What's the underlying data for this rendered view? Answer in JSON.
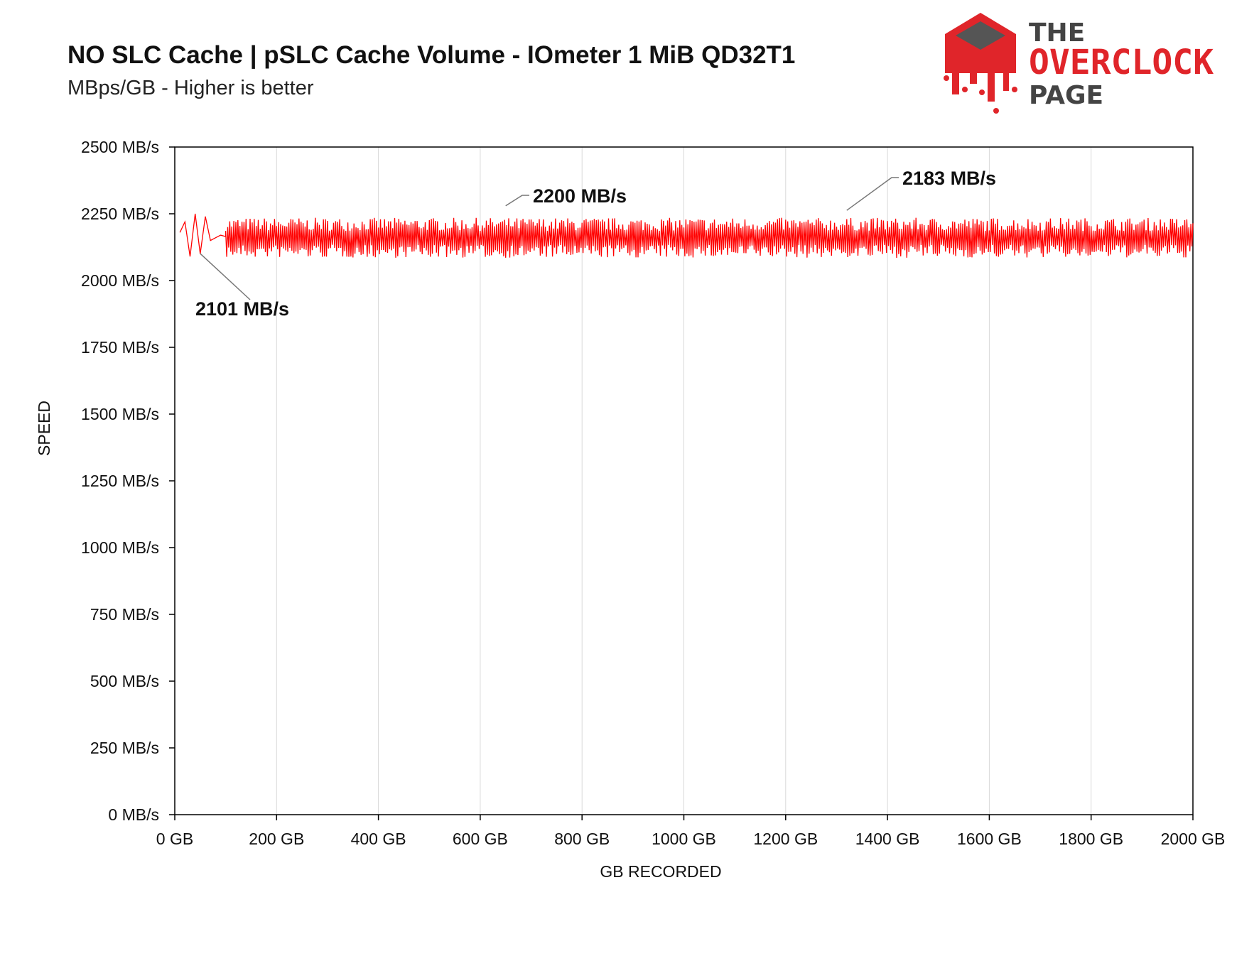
{
  "header": {
    "title": "NO SLC Cache | pSLC Cache Volume - IOmeter 1 MiB QD32T1",
    "subtitle": "MBps/GB - Higher is better"
  },
  "logo": {
    "line1": "THE",
    "line2": "OVERCLOCK",
    "line3": "PAGE",
    "brand_color": "#e0252a",
    "icon": "melting-chip-icon"
  },
  "chart_data": {
    "type": "line",
    "xlabel": "GB RECORDED",
    "ylabel": "SPEED",
    "xlim": [
      0,
      2000
    ],
    "ylim": [
      0,
      2500
    ],
    "x_ticks": [
      0,
      200,
      400,
      600,
      800,
      1000,
      1200,
      1400,
      1600,
      1800,
      2000
    ],
    "x_tick_labels": [
      "0 GB",
      "200 GB",
      "400 GB",
      "600 GB",
      "800 GB",
      "1000 GB",
      "1200 GB",
      "1400 GB",
      "1600 GB",
      "1800 GB",
      "2000 GB"
    ],
    "y_ticks": [
      0,
      250,
      500,
      750,
      1000,
      1250,
      1500,
      1750,
      2000,
      2250,
      2500
    ],
    "y_tick_labels": [
      "0 MB/s",
      "250 MB/s",
      "500 MB/s",
      "750 MB/s",
      "1000 MB/s",
      "1250 MB/s",
      "1500 MB/s",
      "1750 MB/s",
      "2000 MB/s",
      "2250 MB/s",
      "2500 MB/s"
    ],
    "grid": "vertical",
    "series_color": "#ff0000",
    "series": [
      {
        "values_summary": "oscillates ~2080-2240 MB/s, mean ~2160 MB/s",
        "early_points": [
          [
            10,
            2180
          ],
          [
            20,
            2220
          ],
          [
            30,
            2090
          ],
          [
            40,
            2250
          ],
          [
            50,
            2100
          ],
          [
            60,
            2240
          ],
          [
            70,
            2150
          ],
          [
            80,
            2160
          ],
          [
            90,
            2170
          ],
          [
            100,
            2165
          ]
        ],
        "x_start": 100,
        "x_end": 2000,
        "step": 2,
        "mean": 2160,
        "amplitude": 75
      }
    ],
    "annotations": [
      {
        "text": "2101 MB/s",
        "x": 50,
        "y": 2101
      },
      {
        "text": "2200 MB/s",
        "x": 650,
        "y": 2200
      },
      {
        "text": "2183 MB/s",
        "x": 1320,
        "y": 2183
      }
    ]
  }
}
